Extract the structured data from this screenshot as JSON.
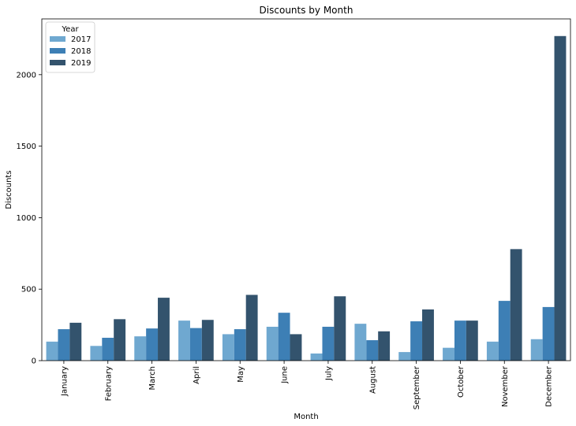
{
  "chart_data": {
    "type": "bar",
    "title": "Discounts by Month",
    "xlabel": "Month",
    "ylabel": "Discounts",
    "categories": [
      "January",
      "February",
      "March",
      "April",
      "May",
      "June",
      "July",
      "August",
      "September",
      "October",
      "November",
      "December"
    ],
    "series": [
      {
        "name": "2017",
        "color": "#6fa8d0",
        "values": [
          133,
          103,
          170,
          280,
          185,
          237,
          50,
          258,
          60,
          90,
          133,
          150
        ]
      },
      {
        "name": "2018",
        "color": "#3d7fb5",
        "values": [
          220,
          160,
          225,
          228,
          220,
          335,
          237,
          143,
          275,
          280,
          418,
          375
        ]
      },
      {
        "name": "2019",
        "color": "#33536d",
        "values": [
          265,
          290,
          440,
          285,
          460,
          185,
          450,
          205,
          358,
          280,
          780,
          2270
        ]
      }
    ],
    "ylim": [
      0,
      2390
    ],
    "yticks": [
      0,
      500,
      1000,
      1500,
      2000
    ],
    "legend": {
      "title": "Year",
      "position": "top-left"
    },
    "grid": false
  }
}
